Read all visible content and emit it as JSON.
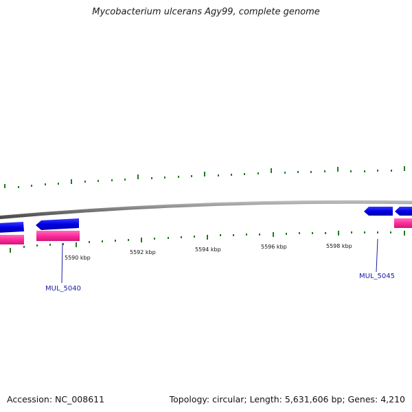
{
  "title": "Mycobacterium ulcerans Agy99, complete genome",
  "accession": "Accession: NC_008611",
  "summary": "Topology: circular; Length: 5,631,606 bp; Genes: 4,210",
  "scale_labels": [
    "5590 kbp",
    "5592 kbp",
    "5594 kbp",
    "5596 kbp",
    "5598 kbp"
  ],
  "gene_labels": [
    "MUL_5040",
    "MUL_5045"
  ],
  "colors": {
    "backbone": "#8c8c8c",
    "tick": "#1e7a1e",
    "gene_forward": "#0000ee",
    "gene_cds": "#ff2a9a",
    "label": "#1a1aa6"
  }
}
